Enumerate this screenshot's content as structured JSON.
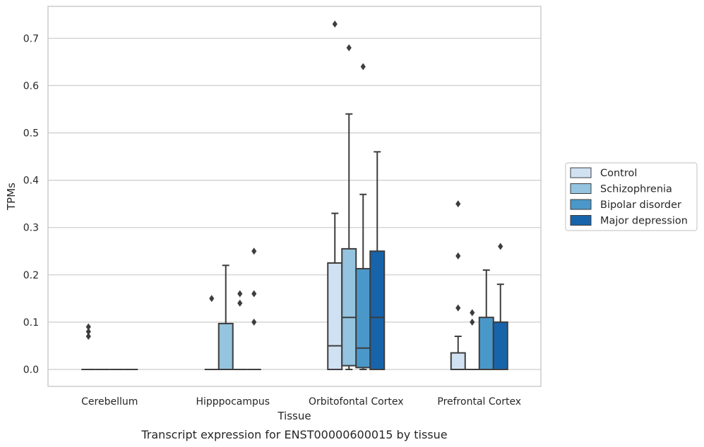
{
  "chart_data": {
    "type": "box",
    "title": "",
    "caption": "Transcript expression for ENST00000600015 by tissue",
    "xlabel": "Tissue",
    "ylabel": "TPMs",
    "ylim": [
      -0.035,
      0.77
    ],
    "yticks": [
      0.0,
      0.1,
      0.2,
      0.3,
      0.4,
      0.5,
      0.6,
      0.7
    ],
    "ytick_labels": [
      "0.0",
      "0.1",
      "0.2",
      "0.3",
      "0.4",
      "0.5",
      "0.6",
      "0.7"
    ],
    "grid": "horizontal",
    "legend_position": "right",
    "categories": [
      "Cerebellum",
      "Hipppocampus",
      "Orbitofontal Cortex",
      "Prefrontal Cortex"
    ],
    "series": [
      {
        "name": "Control",
        "color": "#d0e1f2",
        "boxes": [
          {
            "whisker_low": 0.0,
            "q1": 0.0,
            "median": 0.0,
            "q3": 0.0,
            "whisker_high": 0.0,
            "outliers": [
              0.07,
              0.08,
              0.09
            ]
          },
          {
            "whisker_low": 0.0,
            "q1": 0.0,
            "median": 0.0,
            "q3": 0.0,
            "whisker_high": 0.0,
            "outliers": [
              0.15
            ]
          },
          {
            "whisker_low": 0.0,
            "q1": 0.0,
            "median": 0.05,
            "q3": 0.225,
            "whisker_high": 0.33,
            "outliers": [
              0.73
            ]
          },
          {
            "whisker_low": 0.0,
            "q1": 0.0,
            "median": 0.0,
            "q3": 0.035,
            "whisker_high": 0.07,
            "outliers": [
              0.13,
              0.24,
              0.35
            ]
          }
        ]
      },
      {
        "name": "Schizophrenia",
        "color": "#94c4df",
        "boxes": [
          {
            "whisker_low": 0.0,
            "q1": 0.0,
            "median": 0.0,
            "q3": 0.0,
            "whisker_high": 0.0,
            "outliers": []
          },
          {
            "whisker_low": 0.0,
            "q1": 0.0,
            "median": 0.0,
            "q3": 0.097,
            "whisker_high": 0.22,
            "outliers": []
          },
          {
            "whisker_low": 0.0,
            "q1": 0.008,
            "median": 0.11,
            "q3": 0.255,
            "whisker_high": 0.54,
            "outliers": [
              0.68
            ]
          },
          {
            "whisker_low": 0.0,
            "q1": 0.0,
            "median": 0.0,
            "q3": 0.0,
            "whisker_high": 0.0,
            "outliers": [
              0.1,
              0.12
            ]
          }
        ]
      },
      {
        "name": "Bipolar disorder",
        "color": "#4a98c9",
        "boxes": [
          {
            "whisker_low": 0.0,
            "q1": 0.0,
            "median": 0.0,
            "q3": 0.0,
            "whisker_high": 0.0,
            "outliers": []
          },
          {
            "whisker_low": 0.0,
            "q1": 0.0,
            "median": 0.0,
            "q3": 0.0,
            "whisker_high": 0.0,
            "outliers": [
              0.14,
              0.16
            ]
          },
          {
            "whisker_low": 0.0,
            "q1": 0.004,
            "median": 0.045,
            "q3": 0.213,
            "whisker_high": 0.37,
            "outliers": [
              0.64
            ]
          },
          {
            "whisker_low": 0.0,
            "q1": 0.0,
            "median": 0.0,
            "q3": 0.11,
            "whisker_high": 0.21,
            "outliers": []
          }
        ]
      },
      {
        "name": "Major depression",
        "color": "#1764ab",
        "boxes": [
          {
            "whisker_low": 0.0,
            "q1": 0.0,
            "median": 0.0,
            "q3": 0.0,
            "whisker_high": 0.0,
            "outliers": []
          },
          {
            "whisker_low": 0.0,
            "q1": 0.0,
            "median": 0.0,
            "q3": 0.0,
            "whisker_high": 0.0,
            "outliers": [
              0.1,
              0.16,
              0.25
            ]
          },
          {
            "whisker_low": 0.0,
            "q1": 0.0,
            "median": 0.11,
            "q3": 0.25,
            "whisker_high": 0.46,
            "outliers": []
          },
          {
            "whisker_low": 0.0,
            "q1": 0.0,
            "median": 0.0,
            "q3": 0.1,
            "whisker_high": 0.18,
            "outliers": [
              0.26
            ]
          }
        ]
      }
    ]
  }
}
